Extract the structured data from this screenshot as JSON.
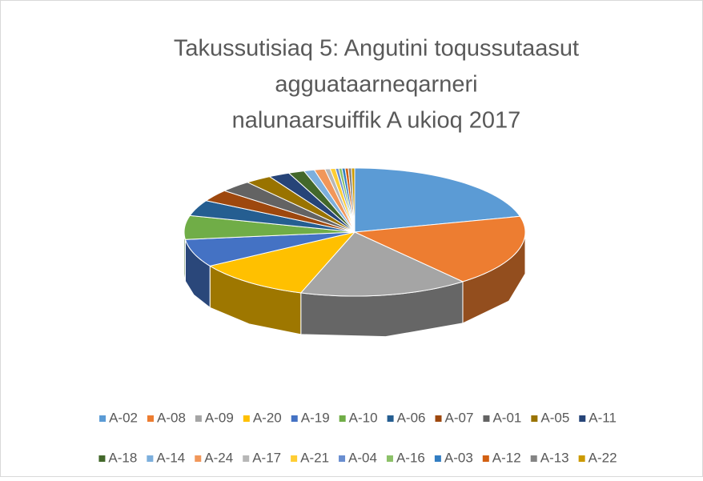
{
  "chart_data": {
    "type": "pie3d",
    "title": [
      "Takussutisiaq 5: Angutini toqussutaasut",
      "agguataarneqarneri",
      "nalunaarsuiffik A ukioq 2017"
    ],
    "categories": [
      "A-02",
      "A-08",
      "A-09",
      "A-20",
      "A-19",
      "A-10",
      "A-06",
      "A-07",
      "A-01",
      "A-05",
      "A-11",
      "A-18",
      "A-14",
      "A-24",
      "A-17",
      "A-21",
      "A-04",
      "A-16",
      "A-03",
      "A-12",
      "A-13",
      "A-22"
    ],
    "values": [
      21,
      18,
      16,
      11,
      7,
      6,
      4,
      3,
      3,
      2.5,
      2,
      1.5,
      1,
      1,
      0.5,
      0.5,
      0.3,
      0.3,
      0.3,
      0.3,
      0.3,
      0.3
    ],
    "colors": [
      "#5b9bd5",
      "#ed7d31",
      "#a5a5a5",
      "#ffc000",
      "#4472c4",
      "#70ad47",
      "#255e91",
      "#9e480e",
      "#636363",
      "#997300",
      "#264478",
      "#43682b",
      "#7cafdd",
      "#f1975a",
      "#b7b7b7",
      "#ffcd33",
      "#698ed0",
      "#8cc168",
      "#327dc2",
      "#d26012",
      "#848484",
      "#cc9a00"
    ],
    "legend": "bottom"
  }
}
